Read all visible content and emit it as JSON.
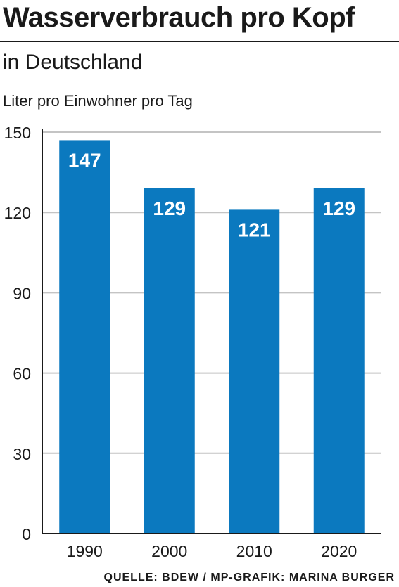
{
  "header": {
    "title": "Wasserverbrauch pro Kopf",
    "subtitle": "in Deutschland",
    "unit_label": "Liter pro Einwohner pro Tag"
  },
  "footer": {
    "source": "QUELLE: BDEW / MP-GRAFIK: MARINA BURGER"
  },
  "chart_data": {
    "type": "bar",
    "categories": [
      "1990",
      "2000",
      "2010",
      "2020"
    ],
    "values": [
      147,
      129,
      121,
      129
    ],
    "data_labels": [
      "147",
      "129",
      "121",
      "129"
    ],
    "ylabel": "Liter pro Einwohner pro Tag",
    "ylim": [
      0,
      150
    ],
    "yticks": [
      0,
      30,
      60,
      90,
      120,
      150
    ],
    "grid": true,
    "bar_color": "#0b79bf",
    "grid_color": "#c4c4c4",
    "label_color": "#ffffff"
  }
}
